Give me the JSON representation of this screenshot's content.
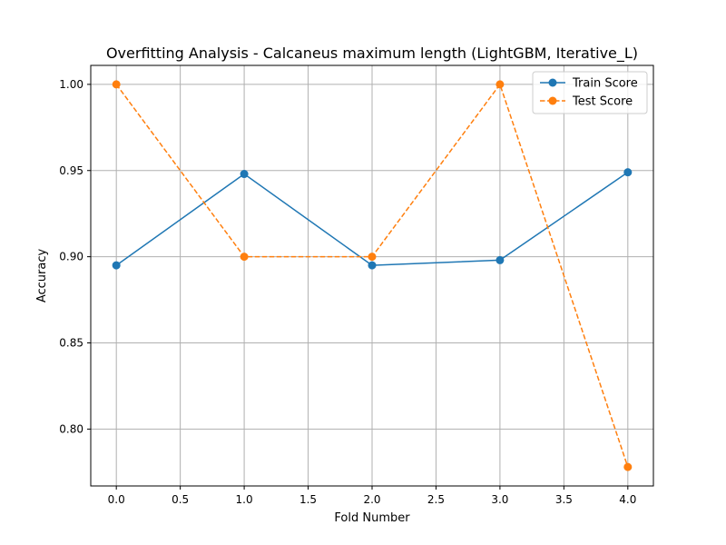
{
  "chart_data": {
    "type": "line",
    "title": "Overfitting Analysis - Calcaneus maximum length (LightGBM, Iterative_L)",
    "xlabel": "Fold Number",
    "ylabel": "Accuracy",
    "xlim": [
      -0.2,
      4.2
    ],
    "ylim": [
      0.767,
      1.011
    ],
    "xticks": [
      0.0,
      0.5,
      1.0,
      1.5,
      2.0,
      2.5,
      3.0,
      3.5,
      4.0
    ],
    "xtick_labels": [
      "0.0",
      "0.5",
      "1.0",
      "1.5",
      "2.0",
      "2.5",
      "3.0",
      "3.5",
      "4.0"
    ],
    "yticks": [
      0.8,
      0.85,
      0.9,
      0.95,
      1.0
    ],
    "ytick_labels": [
      "0.80",
      "0.85",
      "0.90",
      "0.95",
      "1.00"
    ],
    "grid": true,
    "legend_position": "top-right",
    "x": [
      0,
      1,
      2,
      3,
      4
    ],
    "series": [
      {
        "name": "Train Score",
        "values": [
          0.895,
          0.948,
          0.895,
          0.898,
          0.949
        ],
        "color": "#1f77b4",
        "linestyle": "solid",
        "marker": "circle"
      },
      {
        "name": "Test Score",
        "values": [
          1.0,
          0.9,
          0.9,
          1.0,
          0.778
        ],
        "color": "#ff7f0e",
        "linestyle": "dashed",
        "marker": "circle"
      }
    ]
  }
}
